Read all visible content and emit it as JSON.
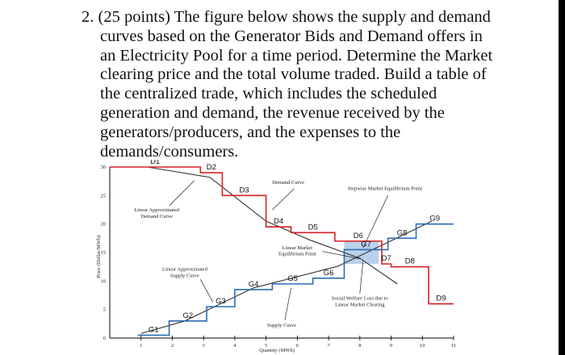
{
  "question": {
    "lines": [
      "2. (25 points) The figure below shows the supply and demand",
      "curves based on the Generator Bids and Demand offers in",
      "an Electricity Pool for a time period. Determine the Market",
      "clearing price and the total volume traded. Build a table of",
      "the centralized trade, which includes the scheduled",
      "generation and demand, the revenue received by the",
      "generators/producers, and the expenses to the",
      "demands/consumers."
    ]
  },
  "chart_data": {
    "type": "line",
    "xlabel": "Quantity (MWh)",
    "ylabel": "Price (Dollar/MWh)",
    "xlim": [
      0,
      11
    ],
    "ylim": [
      0,
      30
    ],
    "x_ticks": [
      "1",
      "2",
      "3",
      "4",
      "5",
      "6",
      "7",
      "8",
      "9",
      "10",
      "11"
    ],
    "y_ticks": [
      "0",
      "5",
      "10",
      "15",
      "20",
      "25",
      "30"
    ],
    "series": [
      {
        "name": "Demand Curve",
        "color": "#d62020",
        "steps": [
          {
            "label": "D1",
            "x": [
              0,
              2.9
            ],
            "price": 30
          },
          {
            "label": "D2",
            "x": [
              2.9,
              3.6
            ],
            "price": 29
          },
          {
            "label": "D3",
            "x": [
              3.6,
              5.0
            ],
            "price": 25
          },
          {
            "label": "D4",
            "x": [
              5.0,
              5.8
            ],
            "price": 19.5
          },
          {
            "label": "D5",
            "x": [
              5.8,
              7.2
            ],
            "price": 18.5
          },
          {
            "label": "D6",
            "x": [
              7.2,
              8.7
            ],
            "price": 17
          },
          {
            "label": "D7",
            "x": [
              8.7,
              9.0
            ],
            "price": 13
          },
          {
            "label": "D8",
            "x": [
              9.0,
              10.2
            ],
            "price": 12.5
          },
          {
            "label": "D9",
            "x": [
              10.2,
              11
            ],
            "price": 6
          }
        ]
      },
      {
        "name": "Supply Curve",
        "color": "#2a6db5",
        "steps": [
          {
            "label": "G1",
            "x": [
              0.9,
              1.9
            ],
            "price": 0.5
          },
          {
            "label": "G2",
            "x": [
              1.9,
              3.1
            ],
            "price": 3.0
          },
          {
            "label": "G3",
            "x": [
              3.1,
              4.0
            ],
            "price": 5.5
          },
          {
            "label": "G4",
            "x": [
              4.0,
              5.2
            ],
            "price": 8.5
          },
          {
            "label": "G5",
            "x": [
              5.2,
              6.5
            ],
            "price": 9.5
          },
          {
            "label": "G6",
            "x": [
              6.5,
              7.5
            ],
            "price": 10.5
          },
          {
            "label": "G7",
            "x": [
              7.5,
              8.9
            ],
            "price": 15.5
          },
          {
            "label": "G8",
            "x": [
              8.9,
              9.8
            ],
            "price": 17.5
          },
          {
            "label": "G9",
            "x": [
              9.8,
              11
            ],
            "price": 20
          }
        ]
      }
    ],
    "annotations": {
      "demand_curve": "Demand Curve",
      "stepwise_equilibrium": "Stepwise Market Equilibrium Point",
      "linear_demand": [
        "Linear Approximated",
        "Demand Curve"
      ],
      "linear_equilibrium": [
        "Linear Market",
        "Equilibrium Point"
      ],
      "linear_supply": [
        "Linear Approximated",
        "Supply Curve"
      ],
      "welfare_loss": [
        "Social Welfare Loss due to",
        "Linear Market Clearing"
      ],
      "supply_curve": "Supply Curve"
    },
    "colors": {
      "demand": "#d62020",
      "supply": "#2a6db5",
      "linear": "#333333",
      "welfare_shade": "#a9c4e6"
    }
  }
}
